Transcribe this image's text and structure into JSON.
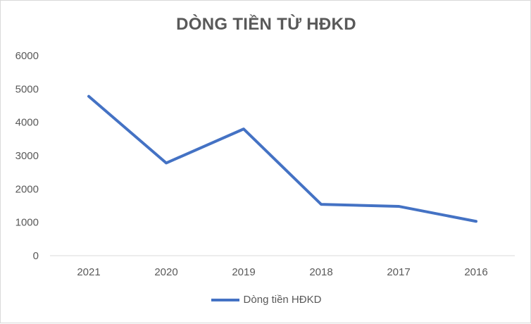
{
  "chart_data": {
    "type": "line",
    "title": "DÒNG TIỀN TỪ HĐKD",
    "categories": [
      "2021",
      "2020",
      "2019",
      "2018",
      "2017",
      "2016"
    ],
    "series": [
      {
        "name": "Dòng tiền HĐKD",
        "values": [
          4780,
          2780,
          3800,
          1540,
          1480,
          1030
        ],
        "color": "#4472c4"
      }
    ],
    "ylim": [
      0,
      6000
    ],
    "yticks": [
      "0",
      "1000",
      "2000",
      "3000",
      "4000",
      "5000",
      "6000"
    ],
    "xlabel": "",
    "ylabel": "",
    "grid": false,
    "legend_position": "bottom"
  }
}
